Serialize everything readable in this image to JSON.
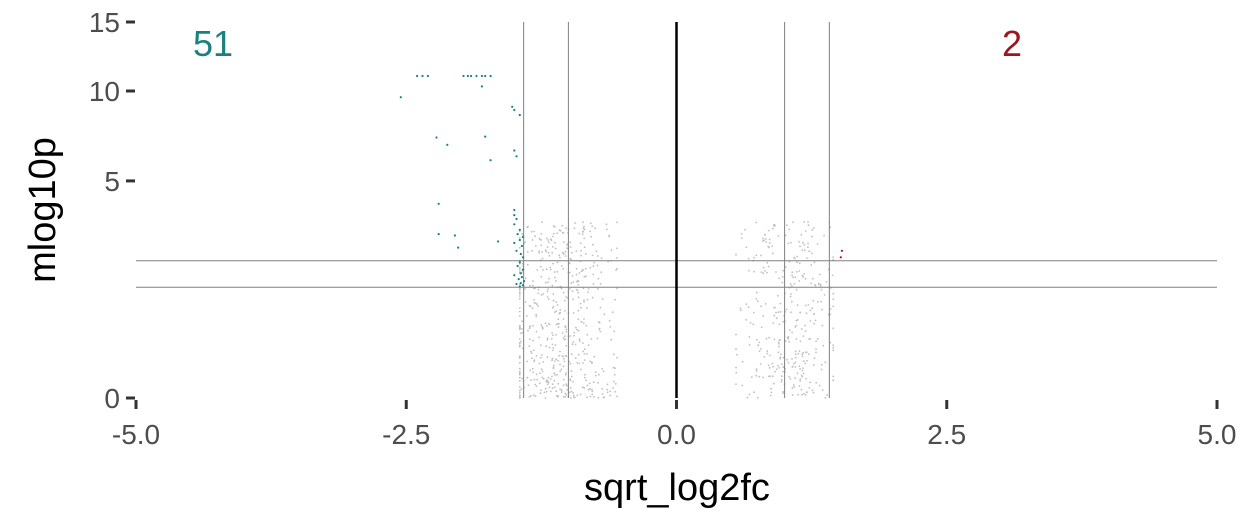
{
  "chart_data": {
    "type": "scatter",
    "title": "",
    "xlabel": "sqrt_log2fc",
    "ylabel": "mlog10p",
    "xlim": [
      -5.0,
      5.0
    ],
    "ylim": [
      0,
      15
    ],
    "y_scale": "sqrt",
    "x_ticks": [
      "-5.0",
      "-2.5",
      "0.0",
      "2.5",
      "5.0"
    ],
    "x_tick_values": [
      -5,
      -2.5,
      0,
      2.5,
      5
    ],
    "y_ticks": [
      "0",
      "5",
      "10",
      "15"
    ],
    "y_tick_values": [
      0,
      5,
      10,
      15
    ],
    "grid": false,
    "reference_lines": {
      "vertical": [
        -1.414,
        -1.0,
        1.0,
        1.414
      ],
      "center": 0.0,
      "horizontal": [
        1.301,
        2.0
      ]
    },
    "counts": {
      "down": "51",
      "up": "2"
    },
    "colors": {
      "down": "#1b8080",
      "up": "#a0141e",
      "ns": "#bfbfbf",
      "lines": "#808080",
      "center_line": "#000000"
    },
    "series": [
      {
        "group": "down",
        "points": [
          [
            -2.4,
            11.0
          ],
          [
            -2.35,
            11.0
          ],
          [
            -2.3,
            11.0
          ],
          [
            -1.97,
            11.0
          ],
          [
            -1.93,
            11.0
          ],
          [
            -1.9,
            11.0
          ],
          [
            -1.85,
            11.0
          ],
          [
            -1.8,
            11.0
          ],
          [
            -1.77,
            11.0
          ],
          [
            -1.72,
            11.0
          ],
          [
            -2.55,
            9.6
          ],
          [
            -1.8,
            10.3
          ],
          [
            -1.52,
            9.0
          ],
          [
            -1.5,
            8.8
          ],
          [
            -1.45,
            8.5
          ],
          [
            -2.22,
            7.2
          ],
          [
            -2.12,
            6.8
          ],
          [
            -1.77,
            7.25
          ],
          [
            -1.5,
            6.5
          ],
          [
            -1.48,
            6.2
          ],
          [
            -1.72,
            6.0
          ],
          [
            -2.2,
            4.0
          ],
          [
            -1.5,
            3.75
          ],
          [
            -1.5,
            3.55
          ],
          [
            -1.48,
            3.4
          ],
          [
            -1.5,
            3.2
          ],
          [
            -1.45,
            3.0
          ],
          [
            -1.47,
            2.85
          ],
          [
            -1.42,
            2.75
          ],
          [
            -1.45,
            2.65
          ],
          [
            -1.5,
            2.55
          ],
          [
            -1.43,
            2.45
          ],
          [
            -1.48,
            2.3
          ],
          [
            -1.44,
            2.2
          ],
          [
            -2.2,
            2.85
          ],
          [
            -2.05,
            2.8
          ],
          [
            -1.65,
            2.6
          ],
          [
            -2.02,
            2.4
          ],
          [
            -1.42,
            2.1
          ],
          [
            -1.45,
            1.95
          ],
          [
            -1.47,
            1.85
          ],
          [
            -1.42,
            1.75
          ],
          [
            -1.44,
            1.65
          ],
          [
            -1.5,
            1.6
          ],
          [
            -1.43,
            1.55
          ],
          [
            -1.46,
            1.5
          ],
          [
            -1.41,
            1.45
          ],
          [
            -1.44,
            1.4
          ],
          [
            -1.48,
            1.38
          ],
          [
            -1.42,
            1.35
          ],
          [
            -1.45,
            1.32
          ]
        ]
      },
      {
        "group": "up",
        "points": [
          [
            1.53,
            2.3
          ],
          [
            1.52,
            2.1
          ]
        ]
      }
    ]
  }
}
